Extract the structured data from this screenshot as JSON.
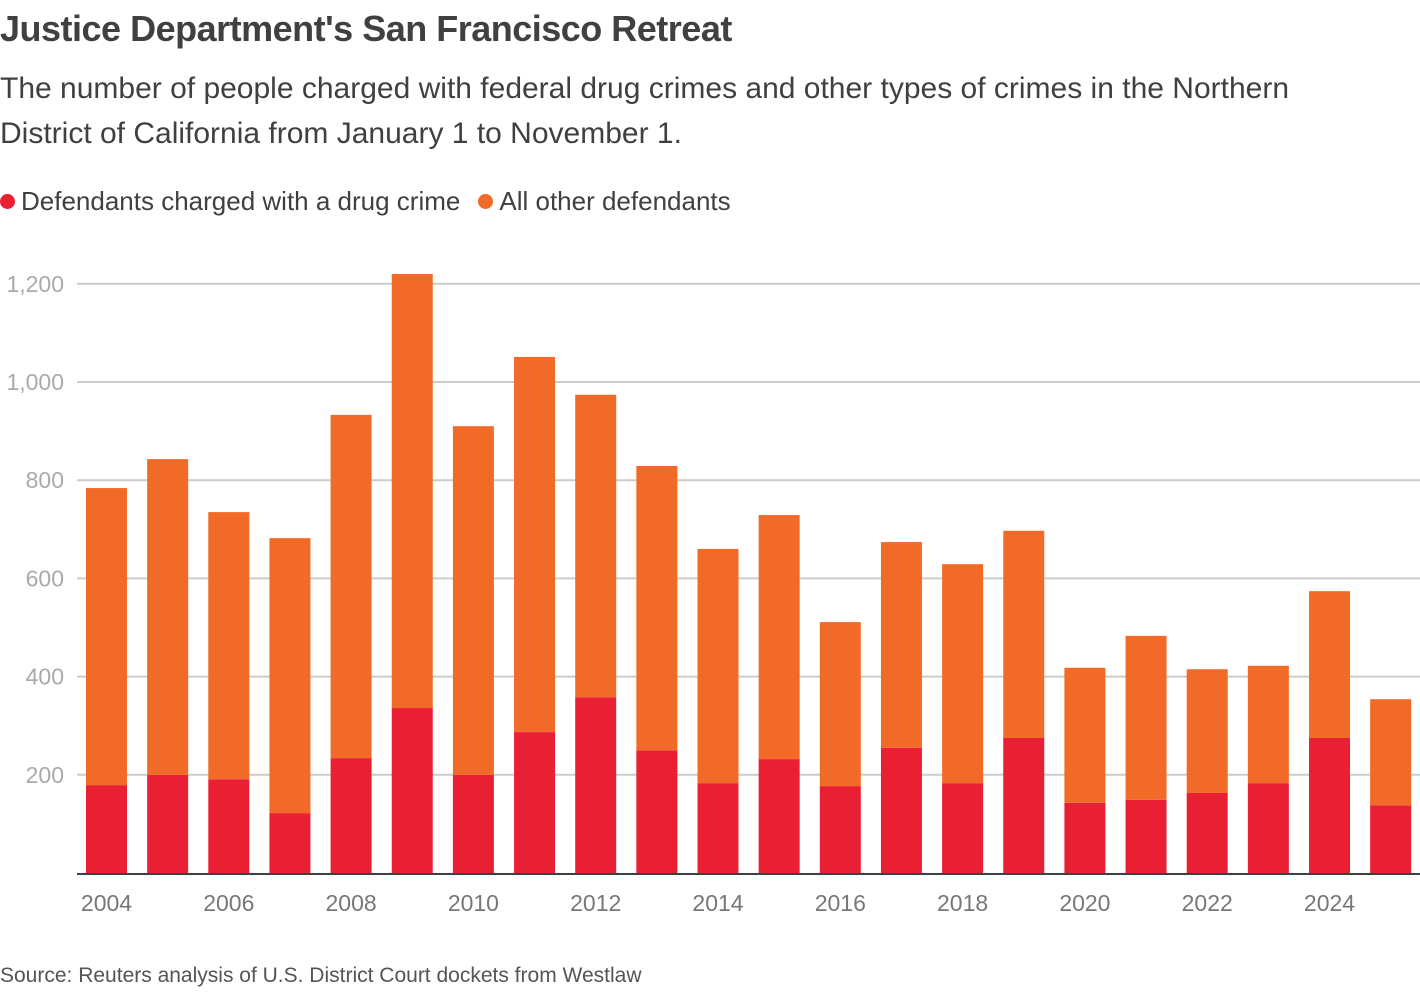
{
  "chart_data": {
    "type": "bar",
    "stacked": true,
    "title": "Justice Department's San Francisco Retreat",
    "subtitle": "The number of people charged with federal drug crimes and other types of crimes in the Northern District of California from January 1 to November 1.",
    "xlabel": "",
    "ylabel": "",
    "ylim": [
      0,
      1250
    ],
    "yticks": [
      200,
      400,
      600,
      800,
      1000,
      1200
    ],
    "ytick_labels": [
      "200",
      "400",
      "600",
      "800",
      "1,000",
      "1,200"
    ],
    "grid": true,
    "legend_position": "top-left",
    "categories": [
      "2004",
      "2005",
      "2006",
      "2007",
      "2008",
      "2009",
      "2010",
      "2011",
      "2012",
      "2013",
      "2014",
      "2015",
      "2016",
      "2017",
      "2018",
      "2019",
      "2020",
      "2021",
      "2022",
      "2023",
      "2024",
      "2025"
    ],
    "xtick_labels": [
      "2004",
      "2006",
      "2008",
      "2010",
      "2012",
      "2014",
      "2016",
      "2018",
      "2020",
      "2022",
      "2024"
    ],
    "series": [
      {
        "name": "Defendants charged with a drug crime",
        "color": "#e92034",
        "values": [
          179,
          200,
          191,
          122,
          234,
          336,
          200,
          287,
          358,
          250,
          183,
          232,
          177,
          255,
          183,
          275,
          143,
          149,
          163,
          183,
          275,
          138
        ]
      },
      {
        "name": "All other defendants",
        "color": "#f26a27",
        "values": [
          605,
          643,
          544,
          560,
          699,
          884,
          710,
          764,
          616,
          579,
          477,
          497,
          334,
          419,
          446,
          422,
          275,
          334,
          252,
          239,
          299,
          216
        ]
      }
    ],
    "source": "Source: Reuters analysis of U.S. District Court dockets from Westlaw"
  }
}
